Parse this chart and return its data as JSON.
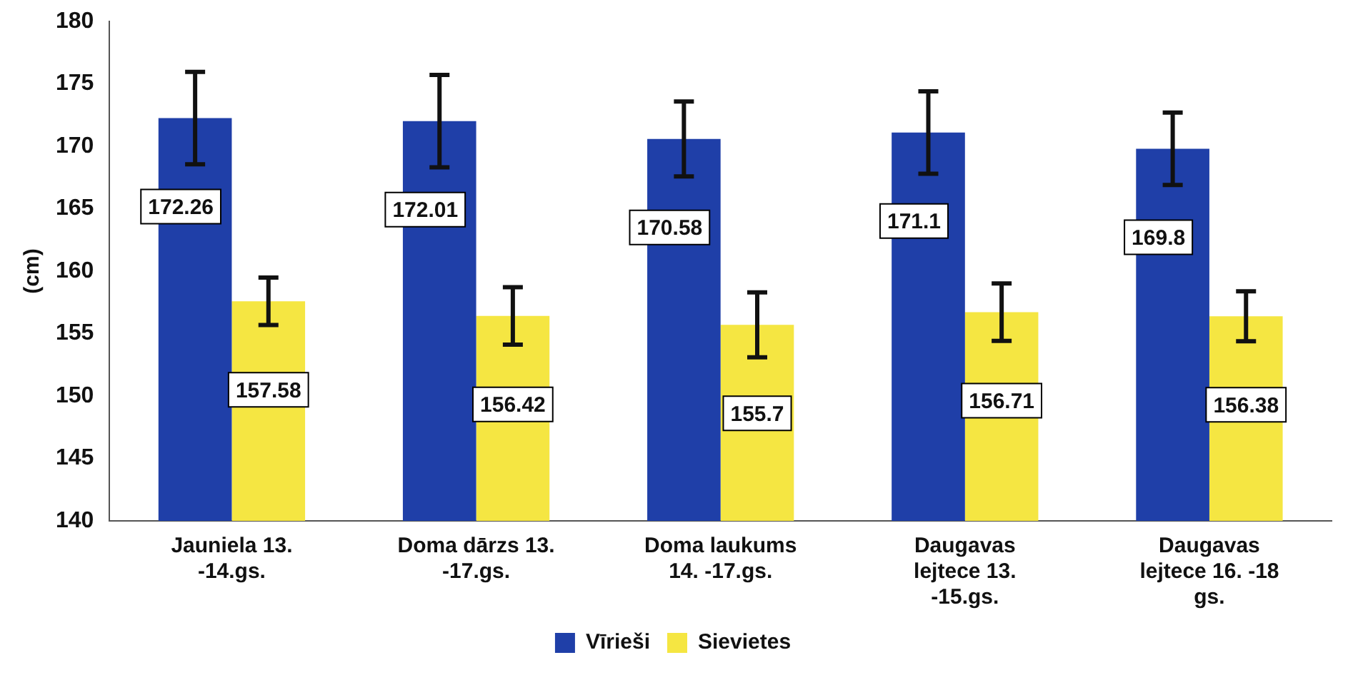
{
  "chart_data": {
    "type": "bar",
    "ylabel": "(cm)",
    "categories": [
      "Jauniela 13. -14.gs.",
      "Doma dārzs 13. -17.gs.",
      "Doma laukums 14. -17.gs.",
      "Daugavas lejtece 13. -15.gs.",
      "Daugavas lejtece 16. -18 gs."
    ],
    "series": [
      {
        "name": "Vīrieši",
        "color": "#1f3fa8",
        "values": [
          172.26,
          172.01,
          170.58,
          171.1,
          169.8
        ],
        "errors": [
          3.7,
          3.7,
          3.0,
          3.3,
          2.9
        ]
      },
      {
        "name": "Sievietes",
        "color": "#f5e642",
        "values": [
          157.58,
          156.42,
          155.7,
          156.71,
          156.38
        ],
        "errors": [
          1.9,
          2.3,
          2.6,
          2.3,
          2.0
        ]
      }
    ],
    "ylim": [
      140,
      180
    ],
    "yticks": [
      140,
      145,
      150,
      155,
      160,
      165,
      170,
      175,
      180
    ],
    "grid": false,
    "legend": "bottom",
    "data_labels": true
  }
}
